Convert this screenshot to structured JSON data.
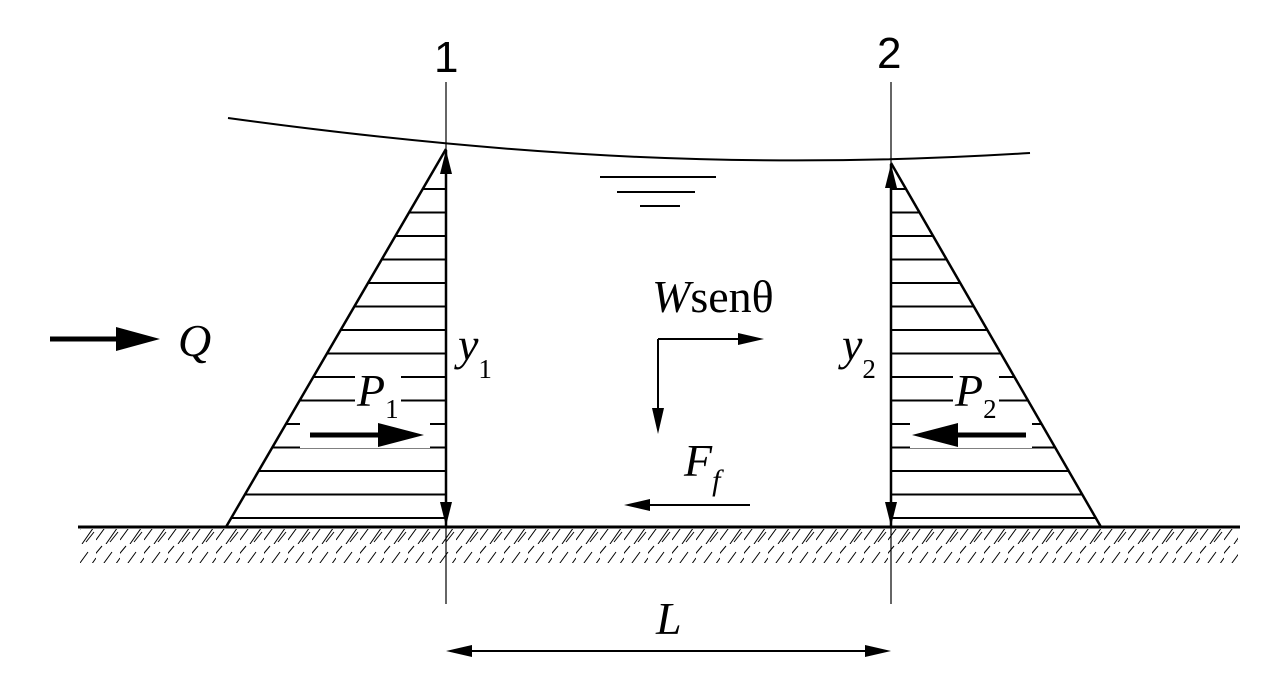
{
  "sections": {
    "left": "1",
    "right": "2"
  },
  "flow": {
    "symbol": "Q"
  },
  "pressure": {
    "left_symbol": "P",
    "left_sub": "1",
    "right_symbol": "P",
    "right_sub": "2"
  },
  "depth": {
    "left_symbol": "y",
    "left_sub": "1",
    "right_symbol": "y",
    "right_sub": "2"
  },
  "weight": {
    "symbol": "W",
    "rest": "senθ"
  },
  "friction": {
    "symbol": "F",
    "sub": "f"
  },
  "length": {
    "symbol": "L"
  },
  "colors": {
    "ink": "#000000",
    "background": "#ffffff"
  }
}
